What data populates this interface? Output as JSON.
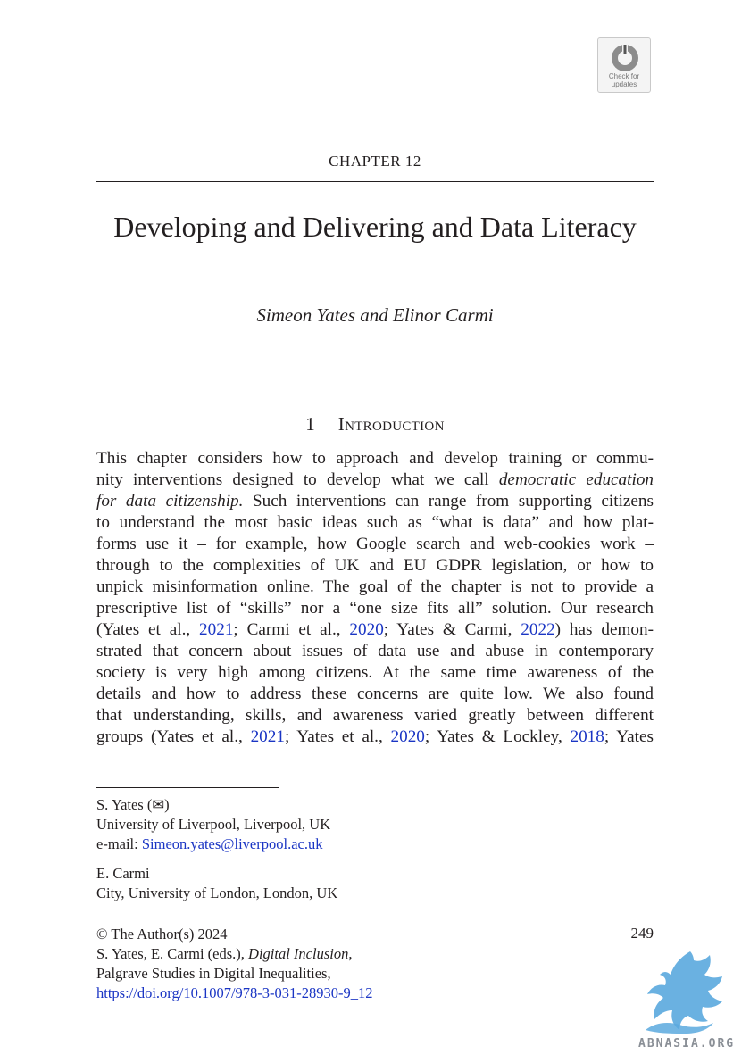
{
  "badge": {
    "line1": "Check for",
    "line2": "updates"
  },
  "chapter_label": "CHAPTER 12",
  "title": "Developing and Delivering and Data Literacy",
  "authors": "Simeon Yates and Elinor Carmi",
  "section": {
    "number": "1",
    "heading": "Introduction"
  },
  "paragraph": {
    "l1": "This chapter considers how to approach and develop training or commu-",
    "l2a": "nity interventions designed to develop what we call ",
    "l2b": "democratic education",
    "l3a": "for data citizenship.",
    "l3b": " Such interventions can range from supporting citizens",
    "l4": "to understand the most basic ideas such as “what is data” and how plat-",
    "l5": "forms use it – for example, how Google search and web-cookies work –",
    "l6": "through to the complexities of UK and EU GDPR legislation, or how to",
    "l7": "unpick misinformation online. The goal of the chapter is not to provide a",
    "l8": "prescriptive list of “skills” nor a “one size fits all” solution. Our research",
    "l9a": "(Yates et al., ",
    "l9_ref1": "2021",
    "l9b": "; Carmi et al., ",
    "l9_ref2": "2020",
    "l9c": "; Yates & Carmi, ",
    "l9_ref3": "2022",
    "l9d": ") has demon-",
    "l10": "strated that concern about issues of data use and abuse in contemporary",
    "l11": "society is very high among citizens. At the same time awareness of the",
    "l12": "details and how to address these concerns are quite low. We also found",
    "l13": "that understanding, skills, and awareness varied greatly between different",
    "l14a": "groups (Yates et al., ",
    "l14_ref1": "2021",
    "l14b": "; Yates et al., ",
    "l14_ref2": "2020",
    "l14c": "; Yates & Lockley, ",
    "l14_ref3": "2018",
    "l14d": "; Yates"
  },
  "footnote": {
    "a1_name": "S. Yates (✉)",
    "a1_affil": "University of Liverpool, Liverpool, UK",
    "a1_email_label": "e-mail: ",
    "a1_email": "Simeon.yates@liverpool.ac.uk",
    "a2_name": "E. Carmi",
    "a2_affil": "City, University of London, London, UK"
  },
  "copyright": {
    "line1": "© The Author(s) 2024",
    "line2a": "S. Yates, E. Carmi (eds.), ",
    "line2b": "Digital Inclusion",
    "line2c": ",",
    "line3": "Palgrave Studies in Digital Inequalities,",
    "doi": "https://doi.org/10.1007/978-3-031-28930-9_12"
  },
  "page_number": "249",
  "watermark": "ABNASIA.ORG"
}
